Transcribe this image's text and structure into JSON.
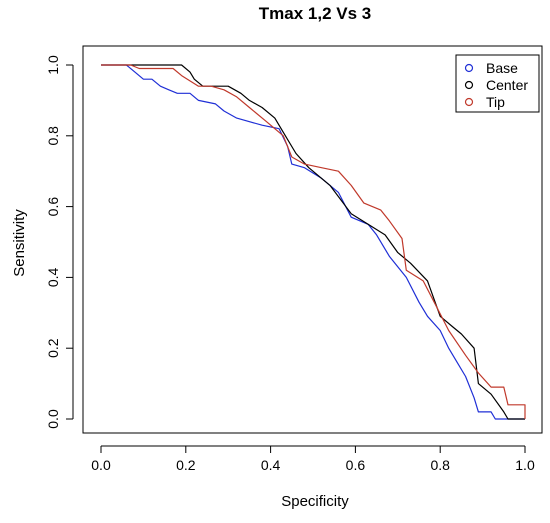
{
  "chart_data": {
    "type": "line",
    "title": "Tmax 1,2 Vs 3",
    "xlabel": "Specificity",
    "ylabel": "Sensitivity",
    "xlim": [
      0,
      1
    ],
    "ylim": [
      0,
      1
    ],
    "xticks": [
      "0.0",
      "0.2",
      "0.4",
      "0.6",
      "0.8",
      "1.0"
    ],
    "yticks": [
      "0.0",
      "0.2",
      "0.4",
      "0.6",
      "0.8",
      "1.0"
    ],
    "grid": false,
    "legend_position": "top-right",
    "series": [
      {
        "name": "Base",
        "color": "#1f2fd6",
        "points": [
          [
            0.0,
            1.0
          ],
          [
            0.06,
            1.0
          ],
          [
            0.08,
            0.98
          ],
          [
            0.1,
            0.96
          ],
          [
            0.12,
            0.96
          ],
          [
            0.14,
            0.94
          ],
          [
            0.16,
            0.93
          ],
          [
            0.18,
            0.92
          ],
          [
            0.21,
            0.92
          ],
          [
            0.23,
            0.9
          ],
          [
            0.27,
            0.89
          ],
          [
            0.29,
            0.87
          ],
          [
            0.32,
            0.85
          ],
          [
            0.38,
            0.83
          ],
          [
            0.42,
            0.82
          ],
          [
            0.44,
            0.77
          ],
          [
            0.45,
            0.72
          ],
          [
            0.48,
            0.71
          ],
          [
            0.52,
            0.68
          ],
          [
            0.56,
            0.64
          ],
          [
            0.59,
            0.57
          ],
          [
            0.63,
            0.55
          ],
          [
            0.65,
            0.52
          ],
          [
            0.68,
            0.46
          ],
          [
            0.72,
            0.4
          ],
          [
            0.75,
            0.33
          ],
          [
            0.77,
            0.29
          ],
          [
            0.8,
            0.25
          ],
          [
            0.82,
            0.2
          ],
          [
            0.84,
            0.16
          ],
          [
            0.86,
            0.12
          ],
          [
            0.88,
            0.06
          ],
          [
            0.89,
            0.02
          ],
          [
            0.92,
            0.02
          ],
          [
            0.93,
            0.0
          ],
          [
            1.0,
            0.0
          ]
        ]
      },
      {
        "name": "Center",
        "color": "#000000",
        "points": [
          [
            0.0,
            1.0
          ],
          [
            0.09,
            1.0
          ],
          [
            0.19,
            1.0
          ],
          [
            0.21,
            0.98
          ],
          [
            0.22,
            0.96
          ],
          [
            0.24,
            0.94
          ],
          [
            0.3,
            0.94
          ],
          [
            0.33,
            0.92
          ],
          [
            0.35,
            0.9
          ],
          [
            0.38,
            0.88
          ],
          [
            0.41,
            0.85
          ],
          [
            0.43,
            0.81
          ],
          [
            0.46,
            0.75
          ],
          [
            0.49,
            0.71
          ],
          [
            0.54,
            0.66
          ],
          [
            0.59,
            0.58
          ],
          [
            0.63,
            0.55
          ],
          [
            0.67,
            0.52
          ],
          [
            0.7,
            0.47
          ],
          [
            0.73,
            0.44
          ],
          [
            0.77,
            0.39
          ],
          [
            0.8,
            0.29
          ],
          [
            0.83,
            0.26
          ],
          [
            0.85,
            0.24
          ],
          [
            0.88,
            0.2
          ],
          [
            0.89,
            0.1
          ],
          [
            0.92,
            0.07
          ],
          [
            0.95,
            0.02
          ],
          [
            0.96,
            0.0
          ],
          [
            1.0,
            0.0
          ]
        ]
      },
      {
        "name": "Tip",
        "color": "#c0392b",
        "points": [
          [
            0.0,
            1.0
          ],
          [
            0.07,
            1.0
          ],
          [
            0.09,
            0.99
          ],
          [
            0.17,
            0.99
          ],
          [
            0.19,
            0.97
          ],
          [
            0.23,
            0.94
          ],
          [
            0.26,
            0.94
          ],
          [
            0.29,
            0.93
          ],
          [
            0.32,
            0.91
          ],
          [
            0.35,
            0.88
          ],
          [
            0.39,
            0.84
          ],
          [
            0.43,
            0.8
          ],
          [
            0.45,
            0.74
          ],
          [
            0.48,
            0.72
          ],
          [
            0.52,
            0.71
          ],
          [
            0.56,
            0.7
          ],
          [
            0.59,
            0.66
          ],
          [
            0.62,
            0.61
          ],
          [
            0.66,
            0.59
          ],
          [
            0.68,
            0.56
          ],
          [
            0.71,
            0.51
          ],
          [
            0.72,
            0.42
          ],
          [
            0.76,
            0.39
          ],
          [
            0.79,
            0.32
          ],
          [
            0.82,
            0.25
          ],
          [
            0.86,
            0.18
          ],
          [
            0.89,
            0.13
          ],
          [
            0.92,
            0.09
          ],
          [
            0.95,
            0.09
          ],
          [
            0.96,
            0.04
          ],
          [
            1.0,
            0.04
          ],
          [
            1.0,
            0.0
          ]
        ]
      }
    ]
  }
}
